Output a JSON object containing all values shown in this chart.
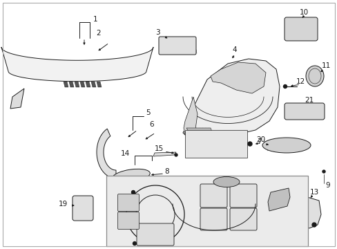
{
  "bg_color": "#ffffff",
  "line_color": "#1a1a1a",
  "gray_fill": "#e8e8e8",
  "light_gray": "#f0f0f0",
  "inset_bg": "#ebebeb",
  "dark_gray": "#c0c0c0"
}
